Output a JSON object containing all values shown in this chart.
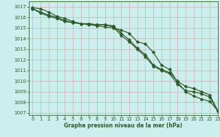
{
  "title": "Graphe pression niveau de la mer (hPa)",
  "background_color": "#cceeed",
  "grid_color": "#c0c0c0",
  "line_color": "#2d5a27",
  "xlim": [
    -0.5,
    23
  ],
  "ylim": [
    1006.8,
    1017.5
  ],
  "yticks": [
    1007,
    1008,
    1009,
    1010,
    1011,
    1012,
    1013,
    1014,
    1015,
    1016,
    1017
  ],
  "xticks": [
    0,
    1,
    2,
    3,
    4,
    5,
    6,
    7,
    8,
    9,
    10,
    11,
    12,
    13,
    14,
    15,
    16,
    17,
    18,
    19,
    20,
    21,
    22,
    23
  ],
  "series": [
    [
      1016.9,
      1016.8,
      1016.5,
      1016.1,
      1015.9,
      1015.6,
      1015.4,
      1015.3,
      1015.2,
      1015.1,
      1015.0,
      1014.8,
      1014.5,
      1013.7,
      1013.5,
      1012.7,
      1011.5,
      1011.1,
      1009.9,
      1009.0,
      1008.6,
      1008.3,
      1008.1,
      1007.2
    ],
    [
      1016.8,
      1016.5,
      1016.2,
      1016.0,
      1015.7,
      1015.5,
      1015.4,
      1015.4,
      1015.3,
      1015.3,
      1015.2,
      1014.5,
      1013.9,
      1013.1,
      1012.5,
      1011.5,
      1011.1,
      1010.8,
      1010.0,
      1009.5,
      1009.3,
      1009.0,
      1008.7,
      1007.2
    ],
    [
      1016.8,
      1016.4,
      1016.1,
      1015.9,
      1015.6,
      1015.5,
      1015.4,
      1015.4,
      1015.3,
      1015.3,
      1015.1,
      1014.3,
      1013.7,
      1013.0,
      1012.3,
      1011.4,
      1011.0,
      1010.7,
      1009.7,
      1009.1,
      1009.0,
      1008.8,
      1008.5,
      1007.2
    ]
  ],
  "markersize": 2.5,
  "linewidth": 0.9,
  "tick_fontsize": 5.0,
  "label_fontsize": 5.5
}
